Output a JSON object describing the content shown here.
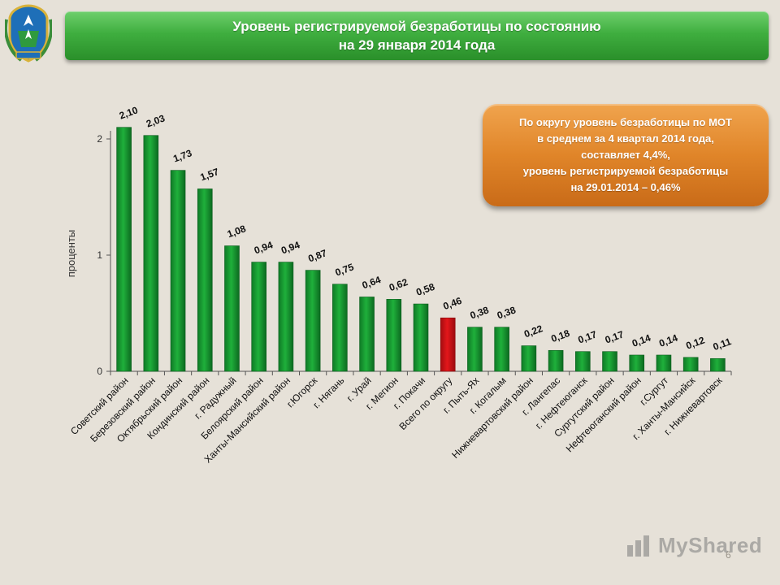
{
  "header": {
    "title_line1": "Уровень регистрируемой безработицы по состоянию",
    "title_line2": "на 29 января  2014 года"
  },
  "callout": {
    "line1": "По округу уровень безработицы по МОТ",
    "line2": "в среднем за 4 квартал 2014 года,",
    "line3": "составляет 4,4%,",
    "line4": "уровень регистрируемой безработицы",
    "line5": "на 29.01.2014 – 0,46%"
  },
  "page_number": "6",
  "watermark": "MyShared",
  "icons": {
    "emblem": "coat-of-arms-icon",
    "watermark_logo": "myshared-logo-icon"
  },
  "colors": {
    "bar": "#1fb03b",
    "highlight": "#e3171b",
    "title_bg": "#3fae3f",
    "callout_bg": "#e08529"
  },
  "chart_data": {
    "type": "bar",
    "title": "Уровень регистрируемой безработицы по состоянию на 29 января  2014 года",
    "ylabel": "проценты",
    "xlabel": "",
    "ylim": [
      0,
      2.1
    ],
    "yticks": [
      "0",
      "1",
      "2"
    ],
    "categories": [
      "Советский район",
      "Березовский район",
      "Октябрьский район",
      "Кондинский район",
      "г. Радужный",
      "Белоярский район",
      "Ханты-Мансийский район",
      "г.Югорск",
      "г. Нягань",
      "г. Урай",
      "г. Мегион",
      "г. Покачи",
      "Всего по округу",
      "г. Пыть-Ях",
      "г. Когалым",
      "Нижневартовский район",
      "г. Лангепас",
      "г. Нефтеюганск",
      "Сургутский район",
      "Нефтеюганский район",
      "г.Сургут",
      "г. Ханты-Мансийск",
      "г. Нижневартовск"
    ],
    "values": [
      2.1,
      2.03,
      1.73,
      1.57,
      1.08,
      0.94,
      0.94,
      0.87,
      0.75,
      0.64,
      0.62,
      0.58,
      0.46,
      0.38,
      0.38,
      0.22,
      0.18,
      0.17,
      0.17,
      0.14,
      0.14,
      0.12,
      0.11
    ],
    "data_labels": [
      "2,10",
      "2,03",
      "1,73",
      "1,57",
      "1,08",
      "0,94",
      "0,94",
      "0,87",
      "0,75",
      "0,64",
      "0,62",
      "0,58",
      "0,46",
      "0,38",
      "0,38",
      "0,22",
      "0,18",
      "0,17",
      "0,17",
      "0,14",
      "0,14",
      "0,12",
      "0,11"
    ],
    "highlight_category": "Всего по округу",
    "grid": false,
    "legend": "none"
  }
}
